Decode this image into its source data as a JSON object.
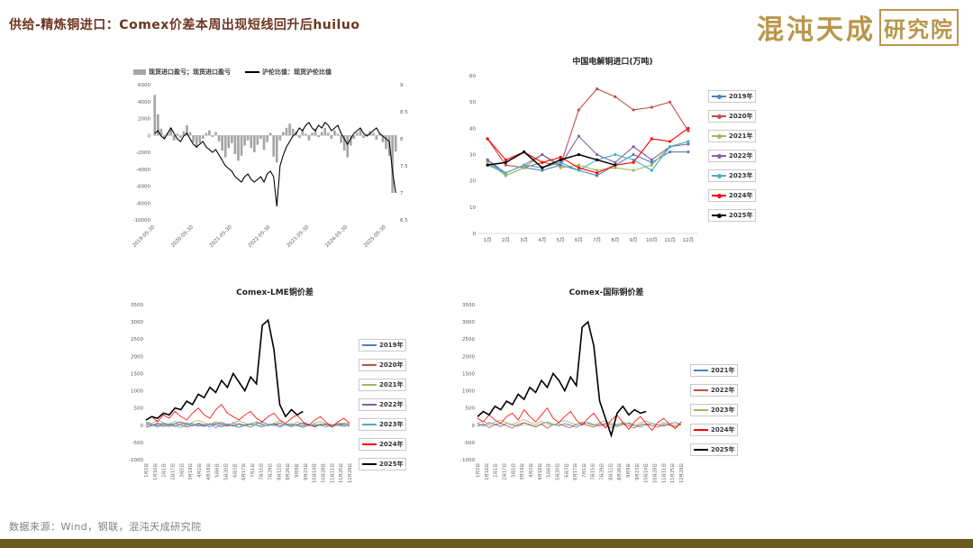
{
  "header": {
    "title": "供给-精炼铜进口：Comex价差本周出现短线回升后huiluo",
    "logo_text": "混沌天成",
    "logo_box": "研究院"
  },
  "footer": {
    "source": "数据来源：Wind，钢联，混沌天成研究院"
  },
  "colors": {
    "accent_brown": "#6e3520",
    "gold": "#b9964b",
    "bottom_bar": "#6b5a22",
    "bar_gray": "#a6a6a6",
    "axis_text": "#595959"
  },
  "chart_data": [
    {
      "id": "import-profit-ratio",
      "type": "bar+line",
      "legend": [
        {
          "label": "现货进口盈亏；现货进口盈亏",
          "color": "#a6a6a6",
          "shape": "bar"
        },
        {
          "label": "沪伦比值：现货沪伦比值",
          "color": "#000000",
          "shape": "line"
        }
      ],
      "y_left": {
        "min": -10000,
        "max": 6000,
        "step": 2000
      },
      "y_right": {
        "min": 6.5,
        "max": 9,
        "step": 0.5
      },
      "x_ticks": [
        "2019-05-30",
        "2020-05-30",
        "2021-05-30",
        "2022-05-30",
        "2023-05-30",
        "2024-05-30",
        "2025-05-30"
      ],
      "x_tick_indices": [
        0,
        12,
        24,
        36,
        48,
        60,
        72
      ],
      "bar_color": "#a6a6a6",
      "bars": [
        4800,
        2500,
        800,
        -400,
        300,
        900,
        -600,
        200,
        -300,
        500,
        1200,
        400,
        -800,
        -1500,
        -900,
        -400,
        300,
        600,
        -200,
        400,
        -700,
        -1800,
        -2600,
        -1500,
        -900,
        -2200,
        -3000,
        -2400,
        -1200,
        -600,
        -1500,
        -2000,
        -1100,
        -400,
        -1700,
        -800,
        300,
        -2500,
        -3200,
        -600,
        400,
        900,
        1400,
        800,
        500,
        -300,
        700,
        200,
        -600,
        300,
        800,
        -200,
        400,
        900,
        300,
        -400,
        600,
        200,
        -900,
        -1800,
        -2600,
        -1200,
        -400,
        300,
        700,
        -300,
        200,
        500,
        300,
        -500,
        200,
        -800,
        -1600,
        -2400,
        -6800,
        -1900
      ],
      "line": [
        8.1,
        8.15,
        8.05,
        8.0,
        8.1,
        8.2,
        8.1,
        8.0,
        7.95,
        8.05,
        8.1,
        8.0,
        7.9,
        7.85,
        7.9,
        7.95,
        7.85,
        7.8,
        7.75,
        7.8,
        7.7,
        7.6,
        7.5,
        7.45,
        7.4,
        7.3,
        7.25,
        7.2,
        7.3,
        7.35,
        7.25,
        7.2,
        7.25,
        7.3,
        7.2,
        7.35,
        7.4,
        7.3,
        6.75,
        7.5,
        7.7,
        7.85,
        7.95,
        8.05,
        8.1,
        8.2,
        8.15,
        8.25,
        8.3,
        8.2,
        8.15,
        8.25,
        8.2,
        8.3,
        8.25,
        8.15,
        8.2,
        8.25,
        8.1,
        8.0,
        7.9,
        8.0,
        8.1,
        8.15,
        8.2,
        8.1,
        8.05,
        8.1,
        8.15,
        8.2,
        8.1,
        8.05,
        8.0,
        7.95,
        7.4,
        7.0
      ]
    },
    {
      "id": "china-copper-imports",
      "type": "line",
      "title": "中国电解铜进口(万吨)",
      "categories": [
        "1月",
        "2月",
        "3月",
        "4月",
        "5月",
        "6月",
        "7月",
        "8月",
        "9月",
        "10月",
        "11月",
        "12月"
      ],
      "ylim": [
        0,
        60
      ],
      "ystep": 10,
      "series": [
        {
          "name": "2019年",
          "color": "#4F81BD",
          "values": [
            28,
            22,
            25,
            24,
            26,
            24,
            22,
            26,
            30,
            27,
            31,
            31
          ]
        },
        {
          "name": "2020年",
          "color": "#C0504D",
          "values": [
            36,
            26,
            25,
            27,
            26,
            47,
            55,
            52,
            47,
            48,
            50,
            39
          ]
        },
        {
          "name": "2021年",
          "color": "#9BBB59",
          "values": [
            27,
            22,
            25,
            30,
            25,
            26,
            24,
            25,
            24,
            26,
            33,
            35
          ]
        },
        {
          "name": "2022年",
          "color": "#8064A2",
          "values": [
            28,
            23,
            26,
            30,
            26,
            37,
            30,
            27,
            33,
            28,
            33,
            34
          ]
        },
        {
          "name": "2023年",
          "color": "#4BACC6",
          "values": [
            26,
            23,
            26,
            25,
            27,
            24,
            28,
            30,
            28,
            24,
            33,
            35
          ]
        },
        {
          "name": "2024年",
          "color": "#FF0000",
          "values": [
            36,
            28,
            31,
            27,
            29,
            25,
            23,
            26,
            27,
            36,
            35,
            40
          ]
        },
        {
          "name": "2025年",
          "color": "#000000",
          "values": [
            26,
            27,
            31,
            25,
            28,
            30,
            28,
            26
          ]
        }
      ]
    },
    {
      "id": "comex-lme-spread",
      "type": "line",
      "title": "Comex-LME铜价差",
      "ylim": [
        -1000,
        3500
      ],
      "ystep": 500,
      "n_slots": 36,
      "x_labels": [
        "1月2日",
        "1月16日",
        "2月1日",
        "2月17日",
        "3月5日",
        "3月19日",
        "4月2日",
        "4月18日",
        "5月6日",
        "5月20日",
        "6月3日",
        "6月17日",
        "7月1日",
        "7月15日",
        "7月29日",
        "8月12日",
        "8月26日",
        "9月9日",
        "9月23日",
        "10月14日",
        "10月28日",
        "11月11日",
        "11月25日",
        "12月29日"
      ],
      "series": [
        {
          "name": "2019年",
          "color": "#4F81BD",
          "values": [
            80,
            30,
            -20,
            60,
            10,
            -40,
            30,
            70,
            20,
            -30,
            10,
            50,
            0,
            -50,
            20,
            60,
            30,
            -10,
            40,
            80,
            20,
            -20,
            30,
            60,
            10,
            -30,
            20,
            50,
            0,
            -40,
            10,
            40,
            20,
            -10,
            30,
            60
          ]
        },
        {
          "name": "2020年",
          "color": "#C0504D",
          "values": [
            -60,
            -20,
            30,
            -40,
            10,
            50,
            0,
            -50,
            -10,
            40,
            -20,
            20,
            60,
            10,
            -30,
            20,
            -60,
            -10,
            30,
            0,
            -40,
            20,
            50,
            -20,
            10,
            40,
            0,
            -30,
            20,
            -50,
            10,
            30,
            -10,
            40,
            0,
            -20
          ]
        },
        {
          "name": "2021年",
          "color": "#9BBB59",
          "values": [
            100,
            50,
            150,
            80,
            20,
            120,
            60,
            0,
            90,
            140,
            70,
            20,
            110,
            50,
            -10,
            80,
            130,
            60,
            10,
            100,
            40,
            -20,
            70,
            120,
            50,
            0,
            90,
            30,
            -30,
            60,
            110,
            40,
            -10,
            80,
            20,
            60
          ]
        },
        {
          "name": "2022年",
          "color": "#8064A2",
          "values": [
            40,
            -10,
            70,
            20,
            -40,
            50,
            100,
            30,
            -20,
            60,
            10,
            -50,
            30,
            80,
            20,
            -30,
            50,
            0,
            -60,
            40,
            90,
            30,
            -10,
            60,
            10,
            -40,
            20,
            70,
            30,
            -20,
            40,
            0,
            -50,
            30,
            60,
            10
          ]
        },
        {
          "name": "2023年",
          "color": "#4BACC6",
          "values": [
            -20,
            30,
            -60,
            10,
            50,
            -10,
            -70,
            20,
            60,
            0,
            -40,
            30,
            -80,
            10,
            40,
            -20,
            -60,
            20,
            50,
            -10,
            -50,
            30,
            0,
            -60,
            20,
            40,
            -20,
            -70,
            10,
            30,
            -10,
            -50,
            20,
            0,
            -40,
            10
          ]
        },
        {
          "name": "2024年",
          "color": "#FF0000",
          "values": [
            150,
            250,
            100,
            300,
            200,
            400,
            250,
            150,
            350,
            500,
            300,
            200,
            450,
            600,
            350,
            250,
            150,
            300,
            400,
            200,
            100,
            250,
            350,
            150,
            50,
            200,
            300,
            100,
            0,
            150,
            250,
            80,
            -50,
            100,
            200,
            60
          ]
        },
        {
          "name": "2025年",
          "color": "#000000",
          "values": [
            150,
            250,
            200,
            350,
            300,
            500,
            450,
            700,
            600,
            900,
            800,
            1100,
            950,
            1300,
            1100,
            1500,
            1250,
            1000,
            1400,
            1200,
            2900,
            3050,
            2200,
            600,
            250,
            450,
            300,
            400
          ]
        }
      ]
    },
    {
      "id": "comex-intl-spread",
      "type": "line",
      "title": "Comex-国际铜价差",
      "ylim": [
        -1000,
        3500
      ],
      "ystep": 500,
      "n_slots": 36,
      "x_labels": [
        "1月2日",
        "1月16日",
        "2月1日",
        "2月17日",
        "3月5日",
        "3月19日",
        "4月2日",
        "4月18日",
        "5月6日",
        "5月20日",
        "6月3日",
        "6月17日",
        "7月1日",
        "7月15日",
        "7月29日",
        "8月12日",
        "8月26日",
        "9月9日",
        "9月23日",
        "10月14日",
        "10月28日",
        "11月11日",
        "11月25日",
        "12月29日"
      ],
      "series": [
        {
          "name": "2021年",
          "color": "#4F81BD",
          "values": [
            50,
            -20,
            80,
            30,
            -40,
            60,
            10,
            -30,
            70,
            20,
            -50,
            40,
            90,
            30,
            -20,
            50,
            0,
            -60,
            30,
            80,
            20,
            -30,
            60,
            10,
            -40,
            30,
            70,
            0,
            -50,
            20,
            60,
            10,
            -30,
            40,
            80,
            20
          ]
        },
        {
          "name": "2022年",
          "color": "#C0504D",
          "values": [
            -30,
            40,
            -70,
            20,
            60,
            -20,
            -80,
            30,
            70,
            10,
            -50,
            40,
            -90,
            20,
            50,
            -30,
            -70,
            30,
            60,
            -10,
            -60,
            40,
            0,
            -70,
            30,
            50,
            -20,
            -80,
            20,
            40,
            -10,
            -60,
            30,
            0,
            -50,
            20
          ]
        },
        {
          "name": "2023年",
          "color": "#9BBB59",
          "values": [
            60,
            120,
            30,
            90,
            150,
            70,
            20,
            100,
            160,
            80,
            30,
            110,
            60,
            0,
            90,
            140,
            70,
            20,
            100,
            50,
            -10,
            80,
            130,
            60,
            10,
            90,
            40,
            -20,
            70,
            120,
            50,
            0,
            80,
            30,
            -10,
            60
          ]
        },
        {
          "name": "2024年",
          "color": "#FF0000",
          "values": [
            200,
            100,
            300,
            150,
            50,
            250,
            350,
            150,
            450,
            250,
            100,
            300,
            500,
            200,
            80,
            250,
            400,
            150,
            0,
            200,
            350,
            100,
            -80,
            150,
            300,
            80,
            -120,
            100,
            250,
            50,
            -150,
            80,
            200,
            30,
            -100,
            100
          ]
        },
        {
          "name": "2025年",
          "color": "#000000",
          "values": [
            250,
            400,
            300,
            550,
            450,
            700,
            600,
            900,
            750,
            1100,
            950,
            1300,
            1100,
            1500,
            1300,
            1000,
            1400,
            1150,
            2850,
            3000,
            2300,
            700,
            200,
            -300,
            350,
            550,
            300,
            450,
            350,
            400
          ]
        }
      ]
    }
  ]
}
